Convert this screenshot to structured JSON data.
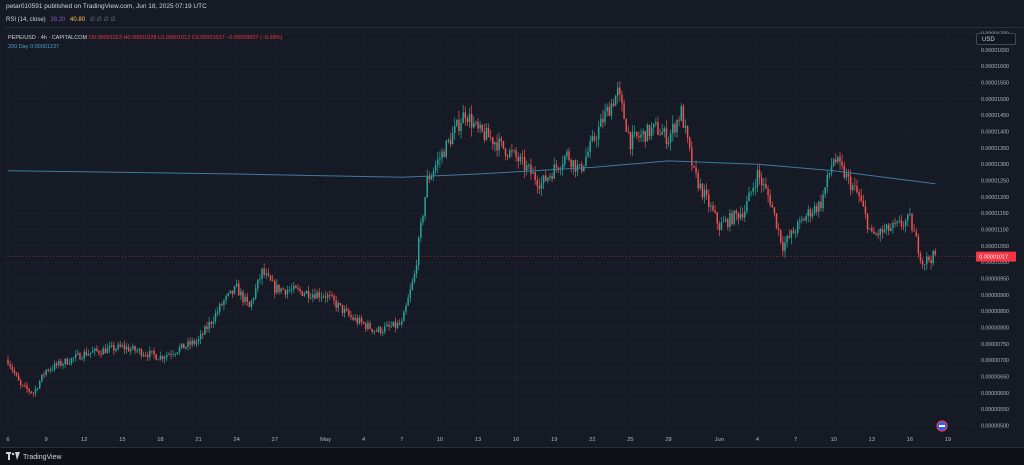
{
  "header": {
    "publish_line": "petar010591 published on TradingView.com, Jun 18, 2025 07:19 UTC"
  },
  "rsi": {
    "label": "RSI (14, close)",
    "value1": "38.20",
    "value2": "40.80",
    "extra": "∅ ∅ ∅ ∅"
  },
  "legend": {
    "symbol": "PEPE/USD · 4h · CAPITALCOM",
    "ohlc": "O0.00001023 H0.00001028 L0.00001013 C0.00001017 −0.00000007 (−0.68%)",
    "ma_label": "200 Day",
    "ma_value": "0.00001237"
  },
  "currency_button": "USD",
  "footer": {
    "brand": "TradingView"
  },
  "colors": {
    "background": "#161a25",
    "up": "#26a69a",
    "down": "#ef5350",
    "ma_line": "#3d7aa0",
    "last_price_tag": "#f23645",
    "grid": "#1f2330"
  },
  "chart_data": {
    "type": "candlestick",
    "title": "PEPE/USD · 4h · CAPITALCOM",
    "ylim": [
      4.8e-06,
      1.72e-05
    ],
    "y_ticks": [
      "0.00001700",
      "0.00001650",
      "0.00001600",
      "0.00001550",
      "0.00001500",
      "0.00001450",
      "0.00001400",
      "0.00001350",
      "0.00001300",
      "0.00001250",
      "0.00001200",
      "0.00001150",
      "0.00001100",
      "0.00001050",
      "0.00001000",
      "0.00000950",
      "0.00000900",
      "0.00000850",
      "0.00000800",
      "0.00000750",
      "0.00000700",
      "0.00000650",
      "0.00000600",
      "0.00000550",
      "0.00000500"
    ],
    "x_ticks": [
      "6",
      "9",
      "12",
      "15",
      "18",
      "21",
      "24",
      "27",
      "May",
      "4",
      "7",
      "10",
      "13",
      "16",
      "19",
      "22",
      "25",
      "28",
      "Jun",
      "4",
      "7",
      "10",
      "13",
      "16",
      "19"
    ],
    "last_price": "0.00001017",
    "close_path": [
      [
        "Apr 6",
        7e-06
      ],
      [
        "Apr 7",
        6.2e-06
      ],
      [
        "Apr 8",
        6e-06
      ],
      [
        "Apr 9",
        6.7e-06
      ],
      [
        "Apr 12",
        7.2e-06
      ],
      [
        "Apr 15",
        7.4e-06
      ],
      [
        "Apr 18",
        7.1e-06
      ],
      [
        "Apr 21",
        7.6e-06
      ],
      [
        "Apr 23",
        8.8e-06
      ],
      [
        "Apr 24",
        9.2e-06
      ],
      [
        "Apr 25",
        8.6e-06
      ],
      [
        "Apr 26",
        9.7e-06
      ],
      [
        "Apr 27",
        9.2e-06
      ],
      [
        "May 1",
        9e-06
      ],
      [
        "May 3",
        8.3e-06
      ],
      [
        "May 5",
        7.9e-06
      ],
      [
        "May 7",
        8.1e-06
      ],
      [
        "May 8",
        9.6e-06
      ],
      [
        "May 9",
        1.25e-05
      ],
      [
        "May 10",
        1.32e-05
      ],
      [
        "May 12",
        1.46e-05
      ],
      [
        "May 13",
        1.4e-05
      ],
      [
        "May 14",
        1.38e-05
      ],
      [
        "May 16",
        1.32e-05
      ],
      [
        "May 18",
        1.24e-05
      ],
      [
        "May 20",
        1.33e-05
      ],
      [
        "May 21",
        1.28e-05
      ],
      [
        "May 23",
        1.45e-05
      ],
      [
        "May 24",
        1.52e-05
      ],
      [
        "May 25",
        1.37e-05
      ],
      [
        "May 27",
        1.41e-05
      ],
      [
        "May 28",
        1.38e-05
      ],
      [
        "May 29",
        1.46e-05
      ],
      [
        "May 30",
        1.27e-05
      ],
      [
        "Jun 1",
        1.11e-05
      ],
      [
        "Jun 3",
        1.16e-05
      ],
      [
        "Jun 4",
        1.27e-05
      ],
      [
        "Jun 5",
        1.19e-05
      ],
      [
        "Jun 6",
        1.05e-05
      ],
      [
        "Jun 8",
        1.15e-05
      ],
      [
        "Jun 9",
        1.18e-05
      ],
      [
        "Jun 10",
        1.32e-05
      ],
      [
        "Jun 11",
        1.26e-05
      ],
      [
        "Jun 12",
        1.2e-05
      ],
      [
        "Jun 13",
        1.08e-05
      ],
      [
        "Jun 15",
        1.11e-05
      ],
      [
        "Jun 16",
        1.13e-05
      ],
      [
        "Jun 17",
        1e-05
      ],
      [
        "Jun 18",
        1.02e-05
      ]
    ],
    "ma_200": [
      [
        "Apr 6",
        1.28e-05
      ],
      [
        "Apr 24",
        1.27e-05
      ],
      [
        "May 7",
        1.26e-05
      ],
      [
        "May 13",
        1.27e-05
      ],
      [
        "May 22",
        1.29e-05
      ],
      [
        "May 28",
        1.31e-05
      ],
      [
        "Jun 4",
        1.3e-05
      ],
      [
        "Jun 10",
        1.28e-05
      ],
      [
        "Jun 18",
        1.24e-05
      ]
    ]
  }
}
